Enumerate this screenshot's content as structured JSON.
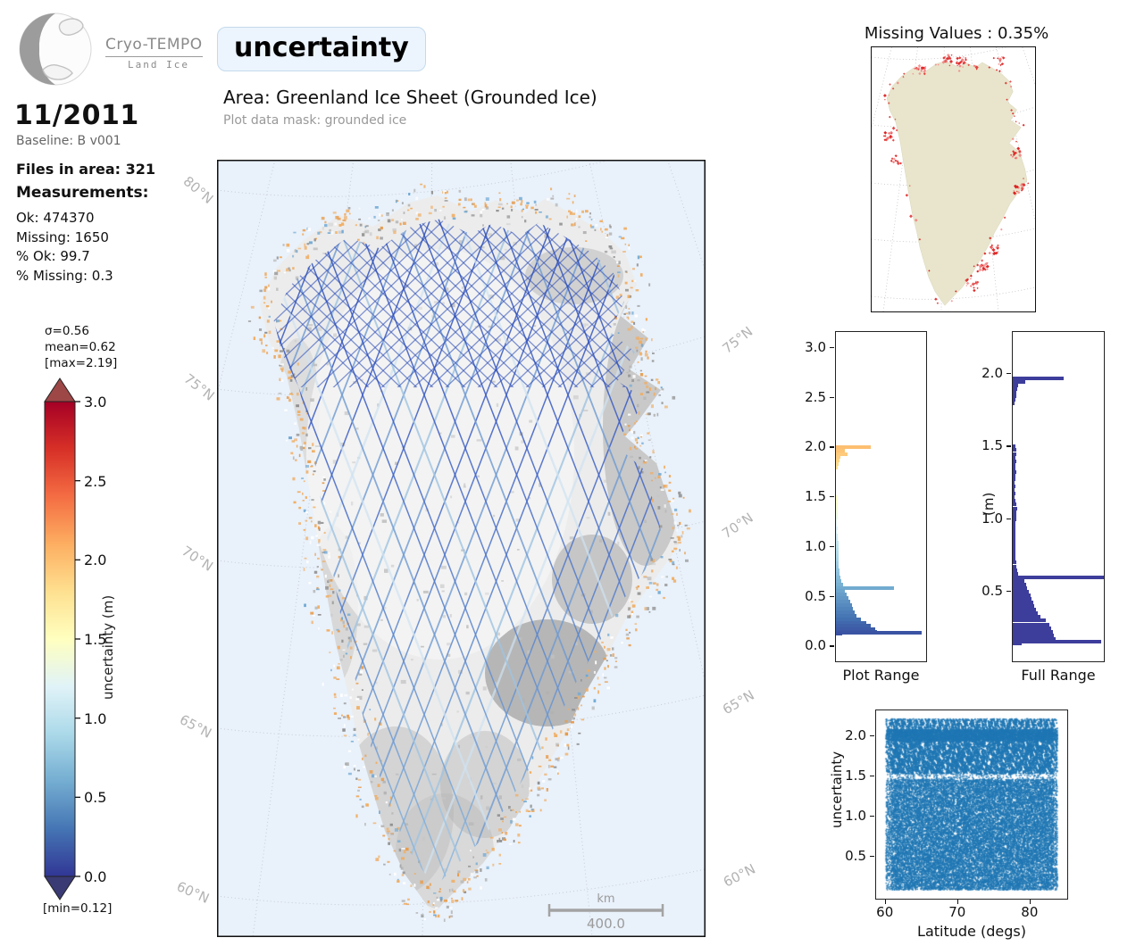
{
  "brand": {
    "name": "Cryo-TEMPO",
    "subtitle": "Land Ice"
  },
  "header": {
    "badge": "uncertainty",
    "area": "Area: Greenland Ice Sheet (Grounded Ice)",
    "mask": "Plot data mask: grounded ice"
  },
  "info_panel": {
    "month": "11/2011",
    "baseline": "Baseline: B v001",
    "files": "Files in area: 321",
    "measurements_label": "Measurements:",
    "stats": [
      "Ok: 474370",
      "Missing: 1650",
      "% Ok: 99.7",
      "% Missing: 0.3"
    ]
  },
  "colorbar": {
    "stats_sigma": "σ=0.56",
    "stats_mean": "mean=0.62",
    "stats_max": "[max=2.19]",
    "stats_min": "[min=0.12]",
    "axis_label": "uncertainty (m)",
    "ticks": [
      "3.0",
      "2.5",
      "2.0",
      "1.5",
      "1.0",
      "0.5",
      "0.0"
    ],
    "cmap": [
      "#313695",
      "#4575b4",
      "#74add1",
      "#abd9e9",
      "#e0f3f8",
      "#ffffbf",
      "#fee090",
      "#fdae61",
      "#f46d43",
      "#d73027",
      "#a50026"
    ],
    "over_color": "#9e4747",
    "under_color": "#3a3a74"
  },
  "main_map": {
    "lat_labels_left": [
      "80°N",
      "75°N",
      "70°N",
      "65°N",
      "60°N"
    ],
    "lat_labels_right": [
      "75°N",
      "70°N",
      "65°N",
      "60°N"
    ],
    "scalebar_unit": "km",
    "scalebar_value": "400.0",
    "ocean_color": "#e9f1fa",
    "track_colors": [
      "#2e4fb8",
      "#3a5cc4",
      "#6e9ad2",
      "#9fc4e2",
      "#cfe3f2"
    ],
    "coast_speckle_color": "#f0ad62",
    "terrain_color": "#909090"
  },
  "missing_map": {
    "title": "Missing Values : 0.35%",
    "land_color": "#e8e5cc",
    "speckle_color": "#dd2020"
  },
  "chart_data": [
    {
      "name": "plot_range_hist",
      "type": "bar",
      "orientation": "horizontal",
      "title": "Plot Range",
      "ylabel": "",
      "ylim": [
        -0.15,
        3.16
      ],
      "yticks": [
        0.0,
        0.5,
        1.0,
        1.5,
        2.0,
        2.5,
        3.0
      ],
      "color_by": "value_colormap_rdylbu",
      "bars": [
        [
          2.0,
          0.38
        ],
        [
          1.97,
          0.1
        ],
        [
          1.935,
          0.13
        ],
        [
          1.9,
          0.05
        ],
        [
          1.865,
          0.038
        ],
        [
          1.83,
          0.03
        ],
        [
          1.795,
          0.022
        ],
        [
          1.5,
          0.012
        ],
        [
          1.465,
          0.015
        ],
        [
          1.43,
          0.02
        ],
        [
          1.395,
          0.016
        ],
        [
          1.36,
          0.02
        ],
        [
          1.325,
          0.022
        ],
        [
          1.29,
          0.016
        ],
        [
          1.255,
          0.014
        ],
        [
          1.22,
          0.013
        ],
        [
          1.185,
          0.015
        ],
        [
          1.15,
          0.014
        ],
        [
          1.115,
          0.016
        ],
        [
          1.08,
          0.022
        ],
        [
          1.045,
          0.028
        ],
        [
          1.01,
          0.026
        ],
        [
          0.975,
          0.028
        ],
        [
          0.94,
          0.027
        ],
        [
          0.905,
          0.03
        ],
        [
          0.87,
          0.028
        ],
        [
          0.835,
          0.03
        ],
        [
          0.8,
          0.033
        ],
        [
          0.765,
          0.038
        ],
        [
          0.73,
          0.042
        ],
        [
          0.695,
          0.048
        ],
        [
          0.66,
          0.055
        ],
        [
          0.625,
          0.075
        ],
        [
          0.59,
          0.63
        ],
        [
          0.555,
          0.1
        ],
        [
          0.52,
          0.12
        ],
        [
          0.485,
          0.135
        ],
        [
          0.45,
          0.155
        ],
        [
          0.415,
          0.17
        ],
        [
          0.38,
          0.185
        ],
        [
          0.345,
          0.205
        ],
        [
          0.31,
          0.225
        ],
        [
          0.275,
          0.27
        ],
        [
          0.24,
          0.33
        ],
        [
          0.205,
          0.38
        ],
        [
          0.175,
          0.43
        ],
        [
          0.15,
          0.45
        ],
        [
          0.138,
          0.93
        ],
        [
          0.125,
          0.07
        ]
      ]
    },
    {
      "name": "full_range_hist",
      "type": "bar",
      "orientation": "horizontal",
      "title": "Full Range",
      "ylabel": "(m)",
      "ylim": [
        0.02,
        2.29
      ],
      "yticks": [
        0.5,
        1.0,
        1.5,
        2.0
      ],
      "bar_color": "#3d3d9c",
      "bars": [
        [
          1.97,
          0.55
        ],
        [
          1.945,
          0.13
        ],
        [
          1.92,
          0.06
        ],
        [
          1.895,
          0.05
        ],
        [
          1.87,
          0.042
        ],
        [
          1.845,
          0.035
        ],
        [
          1.82,
          0.028
        ],
        [
          1.795,
          0.022
        ],
        [
          1.5,
          0.03
        ],
        [
          1.475,
          0.035
        ],
        [
          1.45,
          0.042
        ],
        [
          1.425,
          0.032
        ],
        [
          1.4,
          0.036
        ],
        [
          1.375,
          0.032
        ],
        [
          1.35,
          0.03
        ],
        [
          1.325,
          0.034
        ],
        [
          1.3,
          0.028
        ],
        [
          1.275,
          0.024
        ],
        [
          1.25,
          0.022
        ],
        [
          1.225,
          0.024
        ],
        [
          1.2,
          0.022
        ],
        [
          1.175,
          0.024
        ],
        [
          1.15,
          0.023
        ],
        [
          1.125,
          0.026
        ],
        [
          1.1,
          0.035
        ],
        [
          1.075,
          0.045
        ],
        [
          1.05,
          0.042
        ],
        [
          1.025,
          0.038
        ],
        [
          1.0,
          0.042
        ],
        [
          0.975,
          0.032
        ],
        [
          0.95,
          0.03
        ],
        [
          0.925,
          0.028
        ],
        [
          0.9,
          0.03
        ],
        [
          0.875,
          0.027
        ],
        [
          0.85,
          0.028
        ],
        [
          0.825,
          0.026
        ],
        [
          0.8,
          0.027
        ],
        [
          0.775,
          0.029
        ],
        [
          0.75,
          0.031
        ],
        [
          0.725,
          0.032
        ],
        [
          0.7,
          0.034
        ],
        [
          0.675,
          0.04
        ],
        [
          0.65,
          0.05
        ],
        [
          0.625,
          0.062
        ],
        [
          0.6,
          1.0
        ],
        [
          0.575,
          0.12
        ],
        [
          0.55,
          0.14
        ],
        [
          0.525,
          0.155
        ],
        [
          0.5,
          0.17
        ],
        [
          0.475,
          0.19
        ],
        [
          0.45,
          0.205
        ],
        [
          0.425,
          0.22
        ],
        [
          0.4,
          0.235
        ],
        [
          0.375,
          0.25
        ],
        [
          0.35,
          0.27
        ],
        [
          0.325,
          0.3
        ],
        [
          0.3,
          0.36
        ],
        [
          0.275,
          0.395
        ],
        [
          0.25,
          0.415
        ],
        [
          0.225,
          0.43
        ],
        [
          0.2,
          0.445
        ],
        [
          0.175,
          0.46
        ],
        [
          0.155,
          0.95
        ],
        [
          0.14,
          0.1
        ]
      ]
    },
    {
      "name": "latitude_scatter",
      "type": "scatter",
      "title": "",
      "xlabel": "Latitude (degs)",
      "ylabel": "uncertainty",
      "xlim": [
        58.8,
        85.2
      ],
      "ylim": [
        -0.04,
        2.31
      ],
      "xticks": [
        60,
        70,
        80
      ],
      "yticks": [
        0.5,
        1.0,
        1.5,
        2.0
      ],
      "point_color": "#1f77b4",
      "x_data_range": [
        60.15,
        83.85
      ],
      "bands": [
        {
          "y0": 0.07,
          "y1": 1.45,
          "density": "dense"
        },
        {
          "y0": 1.45,
          "y1": 1.52,
          "density": "sparse-gap"
        },
        {
          "y0": 1.52,
          "y1": 1.93,
          "density": "medium-clumpy"
        },
        {
          "y0": 1.93,
          "y1": 2.07,
          "density": "dense"
        },
        {
          "y0": 2.07,
          "y1": 2.2,
          "density": "medium-clumpy"
        }
      ]
    }
  ]
}
